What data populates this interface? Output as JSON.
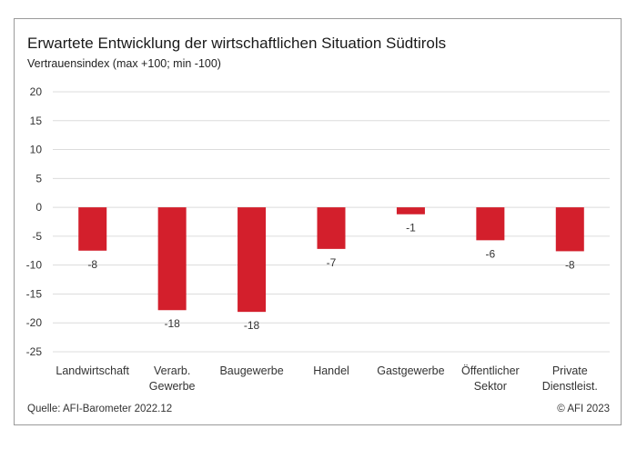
{
  "chart_data": {
    "type": "bar",
    "title": "Erwartete Entwicklung der wirtschaftlichen Situation Südtirols",
    "subtitle": "Vertrauensindex (max +100; min -100)",
    "categories": [
      [
        "Landwirtschaft"
      ],
      [
        "Verarb.",
        "Gewerbe"
      ],
      [
        "Baugewerbe"
      ],
      [
        "Handel"
      ],
      [
        "Gastgewerbe"
      ],
      [
        "Öffentlicher",
        "Sektor"
      ],
      [
        "Private",
        "Dienstleist."
      ]
    ],
    "values": [
      -7.5,
      -17.8,
      -18.1,
      -7.2,
      -1.2,
      -5.7,
      -7.6
    ],
    "data_labels": [
      "-8",
      "-18",
      "-18",
      "-7",
      "-1",
      "-6",
      "-8"
    ],
    "yticks": [
      20,
      15,
      10,
      5,
      0,
      -5,
      -10,
      -15,
      -20,
      -25
    ],
    "ylim": [
      -25,
      20
    ],
    "grid": true,
    "bar_color": "#d31f2c",
    "source": "Quelle: AFI-Barometer 2022.12",
    "copyright": "© AFI 2023"
  }
}
